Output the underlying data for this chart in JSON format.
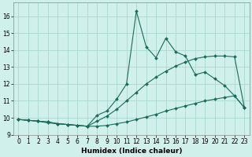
{
  "xlabel": "Humidex (Indice chaleur)",
  "background_color": "#cff0eb",
  "grid_color": "#aad8d0",
  "line_color": "#1a6b5a",
  "xlim": [
    -0.5,
    23.5
  ],
  "ylim": [
    9,
    16.8
  ],
  "xticks": [
    0,
    1,
    2,
    3,
    4,
    5,
    6,
    7,
    8,
    9,
    10,
    11,
    12,
    13,
    14,
    15,
    16,
    17,
    18,
    19,
    20,
    21,
    22,
    23
  ],
  "yticks": [
    9,
    10,
    11,
    12,
    13,
    14,
    15,
    16
  ],
  "series1_x": [
    0,
    1,
    2,
    3,
    4,
    5,
    6,
    7,
    8,
    9,
    10,
    11,
    12,
    13,
    14,
    15,
    16,
    17,
    18,
    19,
    20,
    21,
    22,
    23
  ],
  "series1_y": [
    9.9,
    9.85,
    9.8,
    9.75,
    9.65,
    9.6,
    9.55,
    9.5,
    9.5,
    9.55,
    9.65,
    9.75,
    9.9,
    10.05,
    10.2,
    10.4,
    10.55,
    10.7,
    10.85,
    11.0,
    11.1,
    11.2,
    11.3,
    10.6
  ],
  "series2_x": [
    0,
    1,
    2,
    3,
    4,
    5,
    6,
    7,
    8,
    9,
    10,
    11,
    12,
    13,
    14,
    15,
    16,
    17,
    18,
    19,
    20,
    21,
    22,
    23
  ],
  "series2_y": [
    9.9,
    9.85,
    9.8,
    9.75,
    9.65,
    9.6,
    9.55,
    9.5,
    9.8,
    10.1,
    10.5,
    11.0,
    11.5,
    12.0,
    12.4,
    12.75,
    13.05,
    13.3,
    13.5,
    13.6,
    13.65,
    13.65,
    13.6,
    10.6
  ],
  "series3_x": [
    0,
    1,
    2,
    3,
    4,
    5,
    6,
    7,
    8,
    9,
    10,
    11,
    12,
    13,
    14,
    15,
    16,
    17,
    18,
    19,
    20,
    21,
    22,
    23
  ],
  "series3_y": [
    9.9,
    9.85,
    9.8,
    9.7,
    9.65,
    9.6,
    9.55,
    9.5,
    10.15,
    10.4,
    11.1,
    12.0,
    16.3,
    14.2,
    13.55,
    14.7,
    13.9,
    13.65,
    12.55,
    12.7,
    12.3,
    11.9,
    11.3,
    10.6
  ],
  "markersize": 2.0,
  "linewidth": 0.8
}
